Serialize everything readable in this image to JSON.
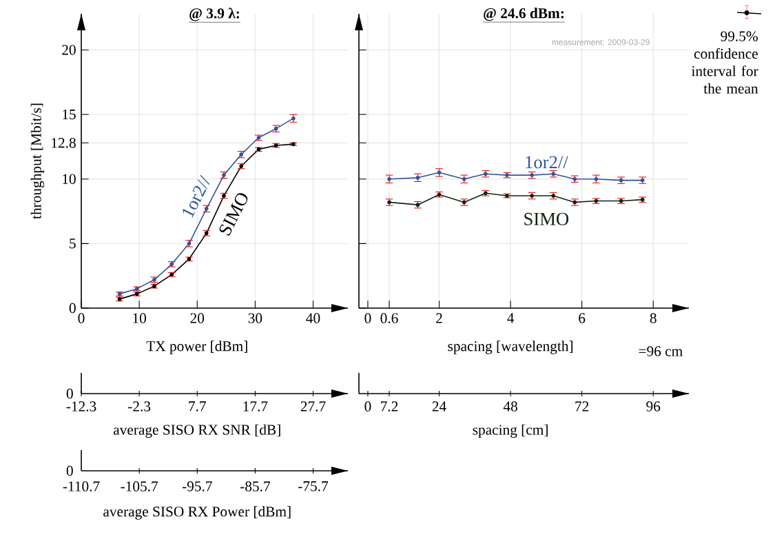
{
  "chart_data": [
    {
      "type": "line",
      "title": "@ 3.9 λ:",
      "xlabel": "TX power [dBm]",
      "ylabel": "throughput [Mbit/s]",
      "x": [
        6.6,
        9.6,
        12.6,
        15.6,
        18.6,
        21.6,
        24.6,
        27.6,
        30.6,
        33.6,
        36.6
      ],
      "series": [
        {
          "name": "1or2//",
          "color": "#2f55a4",
          "values": [
            1.1,
            1.5,
            2.2,
            3.4,
            5.0,
            7.7,
            10.3,
            11.9,
            13.2,
            13.9,
            14.7
          ],
          "errors": [
            0.15,
            0.15,
            0.2,
            0.2,
            0.25,
            0.25,
            0.25,
            0.25,
            0.2,
            0.25,
            0.3
          ]
        },
        {
          "name": "SIMO",
          "color": "#000000",
          "values": [
            0.7,
            1.1,
            1.7,
            2.6,
            3.8,
            5.8,
            8.7,
            11.0,
            12.3,
            12.6,
            12.7
          ],
          "errors": [
            0.15,
            0.15,
            0.15,
            0.15,
            0.15,
            0.2,
            0.2,
            0.2,
            0.15,
            0.15,
            0.1
          ]
        }
      ],
      "xlim": [
        0,
        46
      ],
      "ylim": [
        0,
        22.8
      ],
      "xticks": [
        0,
        10,
        20,
        30,
        40
      ],
      "yticks": [
        0,
        5,
        10,
        12.8,
        15,
        20
      ],
      "x2lim": [
        -12.3,
        33.7
      ],
      "x2ticks": [
        -12.3,
        -2.3,
        7.7,
        17.7,
        27.7
      ],
      "x2label": "average SISO RX SNR [dB]",
      "annotations": [
        "0",
        "0",
        "-110.7",
        "-105.7",
        "-95.7",
        "-85.7",
        "-75.7",
        "average SISO RX Power [dBm]"
      ],
      "grid": true,
      "marker": "circle",
      "line_style": "solid"
    },
    {
      "type": "line",
      "title": "@ 24.6 dBm:",
      "xlabel": "spacing [wavelength]",
      "x": [
        0.6,
        1.4,
        2.0,
        2.7,
        3.3,
        3.9,
        4.6,
        5.2,
        5.8,
        6.4,
        7.1,
        7.7
      ],
      "series": [
        {
          "name": "1or2//",
          "color": "#2f55a4",
          "values": [
            10.0,
            10.1,
            10.5,
            10.0,
            10.4,
            10.3,
            10.3,
            10.4,
            10.0,
            10.0,
            9.9,
            9.9
          ],
          "errors": [
            0.3,
            0.3,
            0.3,
            0.3,
            0.25,
            0.2,
            0.25,
            0.25,
            0.25,
            0.3,
            0.25,
            0.25
          ]
        },
        {
          "name": "SIMO",
          "color": "#0d2614",
          "values": [
            8.2,
            8.0,
            8.8,
            8.2,
            8.9,
            8.7,
            8.7,
            8.7,
            8.2,
            8.3,
            8.3,
            8.4
          ],
          "errors": [
            0.25,
            0.25,
            0.2,
            0.25,
            0.2,
            0.15,
            0.25,
            0.25,
            0.25,
            0.2,
            0.2,
            0.2
          ]
        }
      ],
      "xlim": [
        -0.25,
        9
      ],
      "ylim": [
        0,
        22.8
      ],
      "xticks": [
        0,
        0.6,
        2,
        4,
        6,
        8
      ],
      "yticks": [
        0,
        5,
        10,
        12.8,
        15,
        20
      ],
      "x2lim": [
        -3,
        108
      ],
      "x2ticks": [
        0,
        7.2,
        24,
        48,
        72,
        96
      ],
      "x2label": "spacing [cm]",
      "annotations": [
        "measurement: 2009-03-29",
        "=96 cm",
        "99.5% confidence interval for the mean"
      ],
      "tick_labels": "x",
      "grid": true,
      "marker": "circle",
      "line_style": "solid"
    }
  ]
}
